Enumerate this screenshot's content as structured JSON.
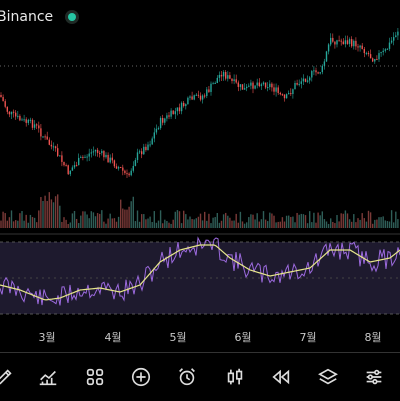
{
  "header": {
    "exchange": "Binance",
    "status_color": "#26c6a4"
  },
  "colors": {
    "up": "#26a69a",
    "down": "#ef5350",
    "rsi_line": "#9c6ade",
    "rsi_ma": "#e6e68a",
    "rsi_band": "#1e1a2e",
    "grid": "#555555",
    "volume_up": "#2f5e58",
    "volume_down": "#7a3a38"
  },
  "x_axis": {
    "months": [
      "3월",
      "4월",
      "5월",
      "6월",
      "7월",
      "8월"
    ]
  },
  "toolbar": {
    "tools": [
      {
        "name": "draw-tool",
        "icon": "pencil-icon"
      },
      {
        "name": "indicators",
        "icon": "chart-line-icon"
      },
      {
        "name": "templates",
        "icon": "grid-icon"
      },
      {
        "name": "add",
        "icon": "plus-circle-icon"
      },
      {
        "name": "alert",
        "icon": "alarm-clock-icon"
      },
      {
        "name": "chart-type",
        "icon": "candlestick-icon"
      },
      {
        "name": "replay",
        "icon": "rewind-icon"
      },
      {
        "name": "layers",
        "icon": "layers-icon"
      },
      {
        "name": "settings",
        "icon": "sliders-icon"
      }
    ]
  }
}
